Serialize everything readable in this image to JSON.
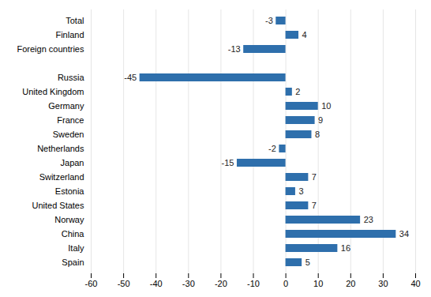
{
  "chart_data": {
    "type": "bar",
    "orientation": "horizontal",
    "categories": [
      "Total",
      "Finland",
      "Foreign countries",
      null,
      "Russia",
      "United Kingdom",
      "Germany",
      "France",
      "Sweden",
      "Netherlands",
      "Japan",
      "Switzerland",
      "Estonia",
      "United States",
      "Norway",
      "China",
      "Italy",
      "Spain"
    ],
    "values": [
      -3,
      4,
      -13,
      null,
      -45,
      2,
      10,
      9,
      8,
      -2,
      -15,
      7,
      3,
      7,
      23,
      34,
      16,
      5
    ],
    "color": "#2e6fac",
    "xlim": [
      -60,
      40
    ],
    "xticks": [
      -60,
      -50,
      -40,
      -30,
      -20,
      -10,
      0,
      10,
      20,
      30,
      40
    ],
    "grid": true,
    "data_labels": true
  }
}
